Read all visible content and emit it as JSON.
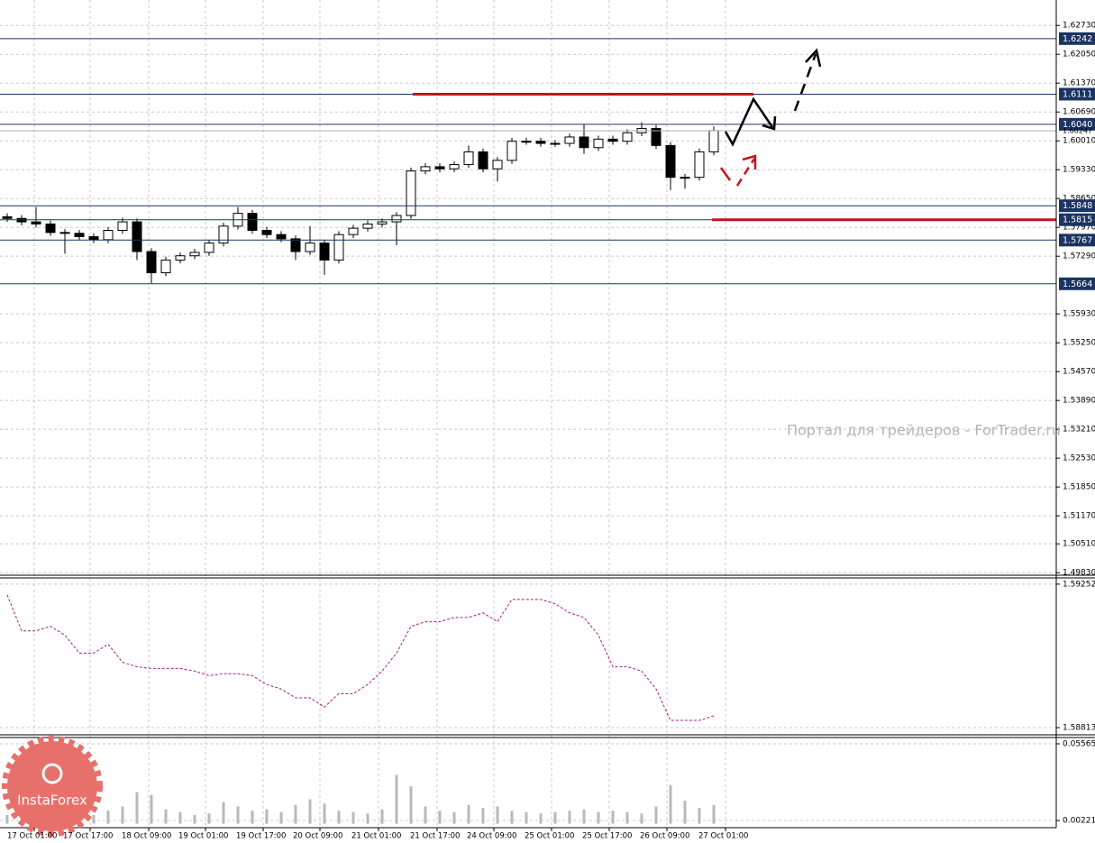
{
  "chart_data": [
    {
      "type": "candlestick",
      "x": [
        2,
        6,
        10,
        14,
        18,
        22,
        26,
        30,
        34,
        38,
        42,
        46,
        50,
        54,
        58,
        62,
        66,
        70,
        74,
        78,
        82,
        86,
        90,
        94,
        98,
        102,
        106,
        110,
        114,
        118,
        122,
        126,
        130,
        134,
        138,
        142,
        146,
        150,
        154,
        158,
        162,
        166,
        170,
        174,
        178,
        182,
        186,
        190,
        194,
        198
      ],
      "open": [
        1.5822,
        1.5818,
        1.581,
        1.5805,
        1.5785,
        1.5783,
        1.5775,
        1.5768,
        1.579,
        1.581,
        1.574,
        1.569,
        1.572,
        1.573,
        1.5738,
        1.576,
        1.58,
        1.583,
        1.579,
        1.578,
        1.577,
        1.574,
        1.576,
        1.572,
        1.578,
        1.5795,
        1.5805,
        1.581,
        1.5825,
        1.593,
        1.594,
        1.5935,
        1.5945,
        1.5975,
        1.5935,
        1.5955,
        1.6,
        1.6,
        1.5995,
        1.5995,
        1.601,
        1.5985,
        1.6005,
        1.6,
        1.602,
        1.603,
        1.599,
        1.5915,
        1.5915,
        1.5975
      ],
      "high": [
        1.583,
        1.5826,
        1.5845,
        1.5813,
        1.5793,
        1.5791,
        1.5783,
        1.5798,
        1.582,
        1.5818,
        1.5748,
        1.5728,
        1.5738,
        1.5746,
        1.5768,
        1.5808,
        1.5845,
        1.5838,
        1.5798,
        1.5788,
        1.5778,
        1.58,
        1.5768,
        1.5788,
        1.5803,
        1.5813,
        1.5818,
        1.5833,
        1.5938,
        1.5948,
        1.5948,
        1.5953,
        1.599,
        1.5983,
        1.5963,
        1.6008,
        1.6008,
        1.6008,
        1.6003,
        1.6018,
        1.604,
        1.6013,
        1.6013,
        1.6028,
        1.6045,
        1.6038,
        1.5998,
        1.5923,
        1.5983,
        1.6035
      ],
      "low": [
        1.581,
        1.5802,
        1.5797,
        1.5777,
        1.5735,
        1.5767,
        1.576,
        1.576,
        1.5782,
        1.572,
        1.5665,
        1.5682,
        1.5712,
        1.5722,
        1.573,
        1.5752,
        1.5792,
        1.5782,
        1.5772,
        1.5762,
        1.572,
        1.5732,
        1.5685,
        1.5712,
        1.5772,
        1.5787,
        1.5797,
        1.5755,
        1.5817,
        1.5922,
        1.5927,
        1.5927,
        1.5937,
        1.5927,
        1.5905,
        1.5947,
        1.5992,
        1.5987,
        1.5987,
        1.5987,
        1.597,
        1.5977,
        1.5992,
        1.5992,
        1.6012,
        1.5982,
        1.5885,
        1.5888,
        1.5907,
        1.5967
      ],
      "close": [
        1.5818,
        1.581,
        1.5805,
        1.5785,
        1.5783,
        1.5775,
        1.5768,
        1.579,
        1.581,
        1.574,
        1.569,
        1.572,
        1.573,
        1.5738,
        1.576,
        1.58,
        1.583,
        1.579,
        1.578,
        1.577,
        1.574,
        1.576,
        1.572,
        1.578,
        1.5795,
        1.5805,
        1.581,
        1.5825,
        1.593,
        1.594,
        1.5935,
        1.5945,
        1.5975,
        1.5935,
        1.5955,
        1.6,
        1.6,
        1.5995,
        1.5995,
        1.601,
        1.5985,
        1.6005,
        1.6,
        1.602,
        1.603,
        1.599,
        1.5915,
        1.5915,
        1.5975,
        1.6025
      ],
      "up_color": "#ffffff",
      "down_color": "#000000",
      "color": "#000000",
      "xlim": [
        0,
        293
      ],
      "ylim": [
        1.4977,
        1.6333
      ],
      "yticks": [
        {
          "value": 1.6273,
          "label": "1.62730"
        },
        {
          "value": 1.6205,
          "label": "1.62050"
        },
        {
          "value": 1.6137,
          "label": "1.61370"
        },
        {
          "value": 1.6069,
          "label": "1.60690"
        },
        {
          "value": 1.6001,
          "label": "1.60010"
        },
        {
          "value": 1.5933,
          "label": "1.59330"
        },
        {
          "value": 1.5865,
          "label": "1.58650"
        },
        {
          "value": 1.5797,
          "label": "1.57970"
        },
        {
          "value": 1.5729,
          "label": "1.57290"
        },
        {
          "value": 1.5593,
          "label": "1.55930"
        },
        {
          "value": 1.5525,
          "label": "1.55250"
        },
        {
          "value": 1.5457,
          "label": "1.54570"
        },
        {
          "value": 1.5389,
          "label": "1.53890"
        },
        {
          "value": 1.5321,
          "label": "1.53210"
        },
        {
          "value": 1.5253,
          "label": "1.52530"
        },
        {
          "value": 1.5185,
          "label": "1.51850"
        },
        {
          "value": 1.5117,
          "label": "1.51170"
        },
        {
          "value": 1.5051,
          "label": "1.50510"
        },
        {
          "value": 1.4983,
          "label": "1.49830"
        }
      ],
      "grid": true,
      "levels": [
        1.6242,
        1.6111,
        {
          "value": 1.604,
          "label": "1.6040"
        },
        1.5848,
        1.5815,
        1.5767,
        1.5664
      ],
      "level_color": "#1b3461",
      "current_price": {
        "value": 1.60247,
        "label": "1.60247"
      },
      "red_lines": [
        {
          "value": 1.6111,
          "x": [
            114.5,
            209
          ]
        },
        {
          "value": 1.5815,
          "x": [
            197.5,
            293
          ]
        }
      ],
      "red_color": "#c0141c",
      "annotation": "Портал для трейдеров - ForTrader.ru"
    },
    {
      "type": "line",
      "x": [
        2,
        6,
        10,
        14,
        18,
        22,
        26,
        30,
        34,
        38,
        42,
        46,
        50,
        54,
        58,
        62,
        66,
        70,
        74,
        78,
        82,
        86,
        90,
        94,
        98,
        102,
        106,
        110,
        114,
        118,
        122,
        126,
        130,
        134,
        138,
        142,
        146,
        150,
        154,
        158,
        162,
        166,
        170,
        174,
        178,
        182,
        186,
        190,
        194,
        198
      ],
      "values": [
        1.59219,
        1.59109,
        1.59109,
        1.59123,
        1.59096,
        1.59041,
        1.59041,
        1.59068,
        1.59013,
        1.58999,
        1.58994,
        1.58994,
        1.58994,
        1.58986,
        1.58972,
        1.58978,
        1.58978,
        1.58972,
        1.58945,
        1.58931,
        1.58904,
        1.58904,
        1.58876,
        1.58917,
        1.58917,
        1.58945,
        1.58986,
        1.59041,
        1.59123,
        1.59137,
        1.59137,
        1.5915,
        1.5915,
        1.59164,
        1.59137,
        1.59205,
        1.59205,
        1.59205,
        1.59192,
        1.59164,
        1.5915,
        1.59096,
        1.58999,
        1.58999,
        1.58986,
        1.58931,
        1.58835,
        1.58835,
        1.58835,
        1.58849
      ],
      "color": "#a0208c",
      "xlim": [
        0,
        293
      ],
      "ylim": [
        1.58791,
        1.59271
      ],
      "yticks": [
        1.59252,
        1.58813
      ],
      "grid": true
    },
    {
      "type": "bar",
      "x": [
        2,
        6,
        10,
        14,
        18,
        22,
        26,
        30,
        34,
        38,
        42,
        46,
        50,
        54,
        58,
        62,
        66,
        70,
        74,
        78,
        82,
        86,
        90,
        94,
        98,
        102,
        106,
        110,
        114,
        118,
        122,
        126,
        130,
        134,
        138,
        142,
        146,
        150,
        154,
        158,
        162,
        166,
        170,
        174,
        178,
        182,
        186,
        190,
        194,
        198
      ],
      "values": [
        0.006,
        0.008,
        0.007,
        0.01,
        0.006,
        0.005,
        0.006,
        0.009,
        0.012,
        0.022,
        0.02,
        0.01,
        0.008,
        0.006,
        0.007,
        0.015,
        0.012,
        0.009,
        0.01,
        0.008,
        0.013,
        0.017,
        0.014,
        0.009,
        0.008,
        0.007,
        0.01,
        0.034,
        0.026,
        0.012,
        0.009,
        0.008,
        0.013,
        0.011,
        0.012,
        0.009,
        0.008,
        0.007,
        0.008,
        0.009,
        0.01,
        0.008,
        0.009,
        0.008,
        0.007,
        0.012,
        0.027,
        0.016,
        0.011,
        0.013
      ],
      "color": "#b8b8b8",
      "xlim": [
        0,
        293
      ],
      "ylim": [
        -0.0028,
        0.06005
      ],
      "yticks": [
        0.05565,
        0.00221
      ],
      "grid": true,
      "xticks": [
        {
          "value": 9.5,
          "label": "17 Oct 01:00"
        },
        {
          "value": 25,
          "label": "17 Oct 17:00"
        },
        {
          "value": 41.25,
          "label": "18 Oct 09:00"
        },
        {
          "value": 57,
          "label": "19 Oct 01:00"
        },
        {
          "value": 73,
          "label": "19 Oct 17:00"
        },
        {
          "value": 88.75,
          "label": "20 Oct 09:00"
        },
        {
          "value": 105,
          "label": "21 Oct 01:00"
        },
        {
          "value": 121.25,
          "label": "21 Oct 17:00"
        },
        {
          "value": 137,
          "label": "24 Oct 09:00"
        },
        {
          "value": 153,
          "label": "25 Oct 01:00"
        },
        {
          "value": 169,
          "label": "25 Oct 17:00"
        },
        {
          "value": 185,
          "label": "26 Oct 09:00"
        },
        {
          "value": 201.25,
          "label": "27 Oct 01:00"
        }
      ]
    }
  ],
  "logo": "InstaForex"
}
